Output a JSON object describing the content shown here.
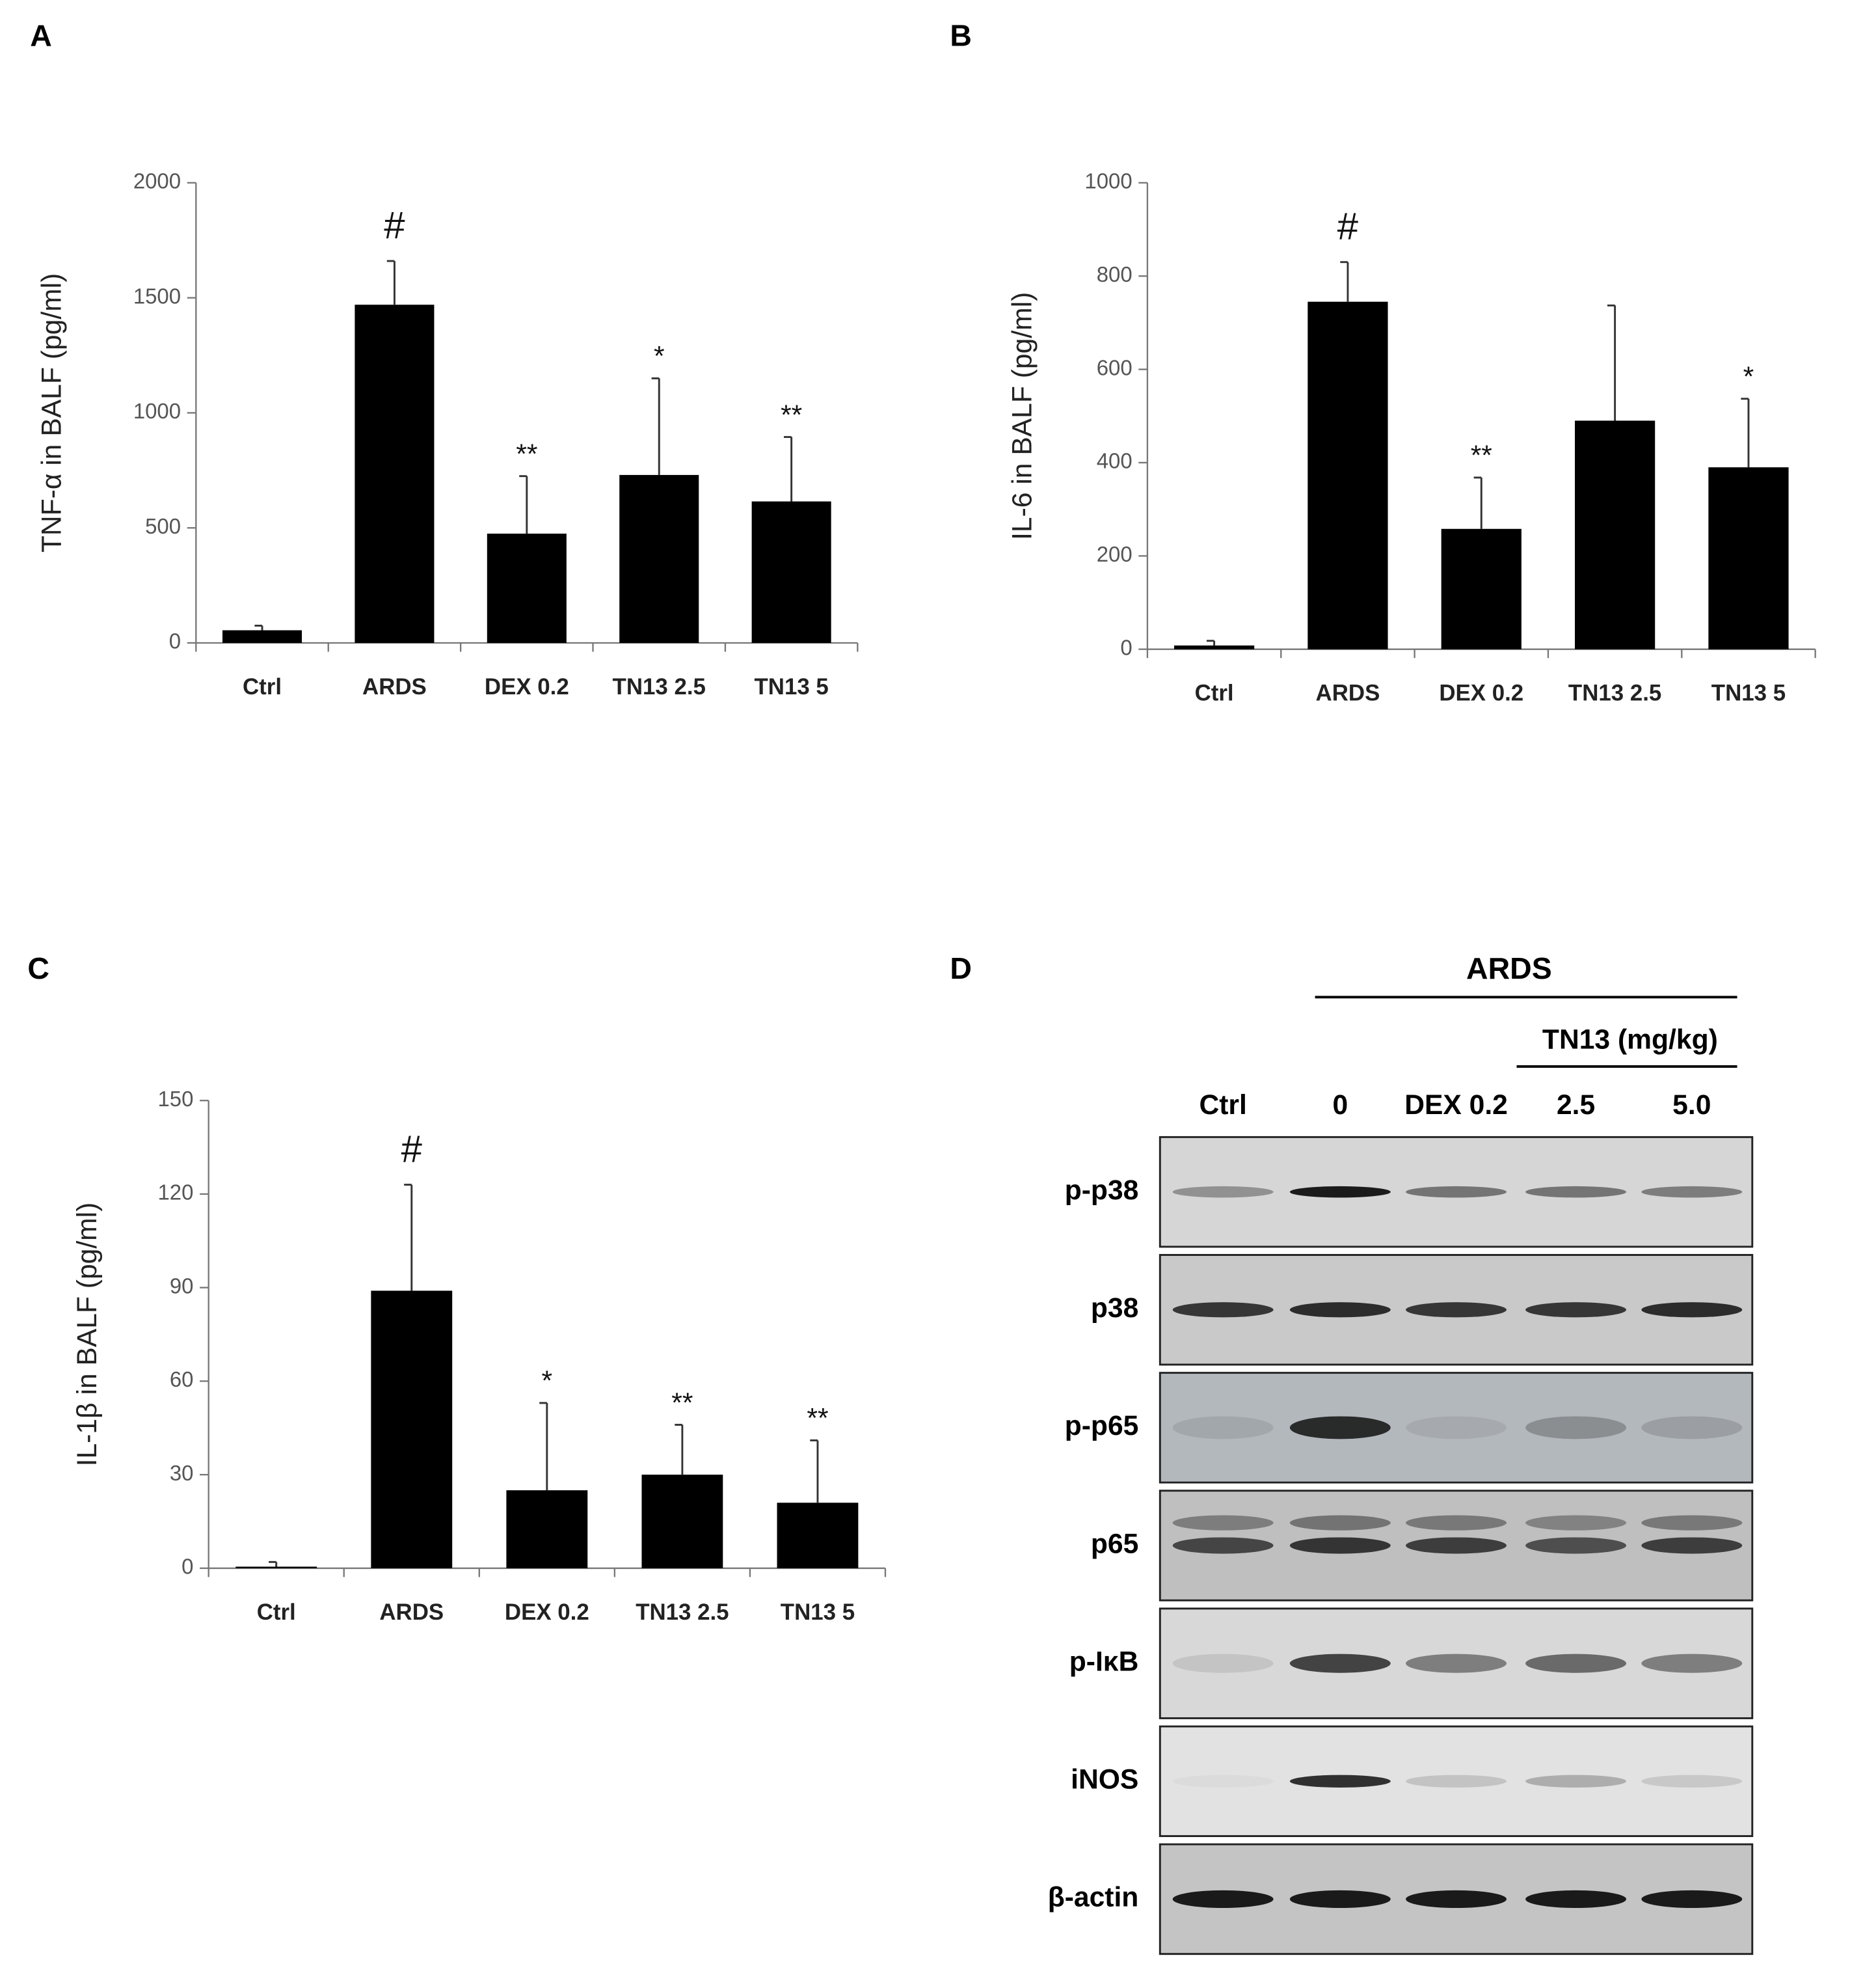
{
  "chart_data": [
    {
      "type": "bar",
      "panel": "A",
      "y_label": "TNF-α in BALF (pg/ml)",
      "color": "#000000",
      "categories": [
        "Ctrl",
        "ARDS",
        "DEX 0.2",
        "TN13 2.5",
        "TN13 5"
      ],
      "values": [
        55,
        1470,
        475,
        730,
        615
      ],
      "errors": [
        20,
        190,
        250,
        420,
        280
      ],
      "annotations": [
        null,
        "#",
        "**",
        "*",
        "**"
      ],
      "ylim": [
        0,
        2000
      ],
      "yticks": [
        0,
        500,
        1000,
        1500,
        2000
      ]
    },
    {
      "type": "bar",
      "panel": "B",
      "y_label": "IL-6 in BALF (pg/ml)",
      "color": "#000000",
      "categories": [
        "Ctrl",
        "ARDS",
        "DEX 0.2",
        "TN13 2.5",
        "TN13 5"
      ],
      "values": [
        8,
        745,
        258,
        490,
        390
      ],
      "errors": [
        10,
        85,
        110,
        247,
        147
      ],
      "annotations": [
        null,
        "#",
        "**",
        null,
        "*"
      ],
      "ylim": [
        0,
        1000
      ],
      "yticks": [
        0,
        200,
        400,
        600,
        800,
        1000
      ]
    },
    {
      "type": "bar",
      "panel": "C",
      "y_label": "IL-1β in BALF (pg/ml)",
      "color": "#000000",
      "categories": [
        "Ctrl",
        "ARDS",
        "DEX 0.2",
        "TN13 2.5",
        "TN13 5"
      ],
      "values": [
        0.5,
        89,
        25,
        30,
        21
      ],
      "errors": [
        1.5,
        34,
        28,
        16,
        20
      ],
      "annotations": [
        null,
        "#",
        "*",
        "**",
        "**"
      ],
      "ylim": [
        0,
        150
      ],
      "yticks": [
        0,
        30,
        60,
        90,
        120,
        150
      ]
    }
  ],
  "blot": {
    "panel": "D",
    "group": "ARDS",
    "subgroup": "TN13 (mg/kg)",
    "lanes": [
      "Ctrl",
      "0",
      "DEX 0.2",
      "2.5",
      "5.0"
    ],
    "rows": [
      "p-p38",
      "p38",
      "p-p65",
      "p65",
      "p-IκB",
      "iNOS",
      "β-actin"
    ]
  }
}
